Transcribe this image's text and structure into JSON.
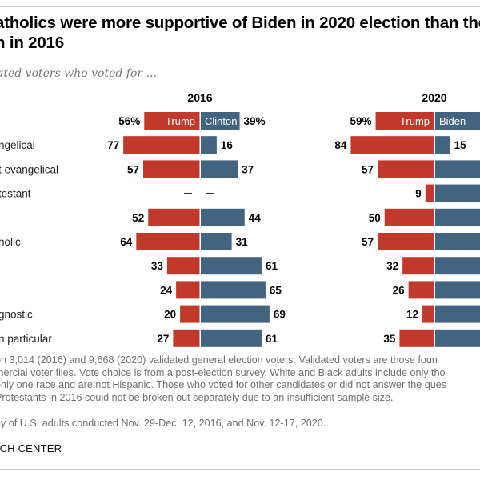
{
  "title_line1": "atholics were more supportive of Biden in 2020 election than the",
  "title_line2": "n in 2016",
  "subtitle": "ated voters who voted for ...",
  "notes": [
    "on 3,014 (2016) and 9,668 (2020) validated general election voters. Validated voters are those foun",
    "mercial voter files. Vote choice is from a post-election survey. White and Black adults include only tho",
    "only one race and are not Hispanic. Those who voted for other candidates or did not answer the ques",
    " Protestants in 2016 could not be broken out separately due to an insufficient sample size."
  ],
  "source": "ey of U.S. adults conducted Nov. 29-Dec. 12, 2016, and Nov. 12-17, 2020.",
  "brand": "RCH CENTER",
  "colors": {
    "rep": "#c0392b",
    "dem": "#436480",
    "text": "#000000",
    "muted": "#767676"
  },
  "chart_data": {
    "type": "bar",
    "subtype": "diverging-horizontal",
    "title": "atholics were more supportive of Biden in 2020 election than the n in 2016",
    "subtitle": "ated voters who voted for ...",
    "unit": "%",
    "categories": [
      "",
      "ngelical",
      "t evangelical",
      "testant",
      "",
      "holic",
      "",
      "",
      "gnostic",
      "n particular"
    ],
    "panels": [
      {
        "year": "2016",
        "series": [
          {
            "name": "Trump",
            "side": "left",
            "values": [
              56,
              77,
              57,
              null,
              52,
              64,
              33,
              24,
              20,
              27
            ]
          },
          {
            "name": "Clinton",
            "side": "right",
            "values": [
              39,
              16,
              37,
              null,
              44,
              31,
              61,
              65,
              69,
              61
            ]
          }
        ],
        "missing_label": "—"
      },
      {
        "year": "2020",
        "series": [
          {
            "name": "Trump",
            "side": "left",
            "values": [
              59,
              84,
              57,
              9,
              50,
              57,
              32,
              26,
              12,
              35
            ]
          },
          {
            "name": "Biden",
            "side": "right",
            "values": [
              null,
              15,
              null,
              null,
              null,
              null,
              null,
              null,
              null,
              null
            ]
          }
        ],
        "note": "Biden values for most 2020 rows are cut off at the image edge"
      }
    ],
    "first_row_suffix": "%",
    "xlim": [
      0,
      100
    ],
    "legend": "inline-first-row"
  }
}
